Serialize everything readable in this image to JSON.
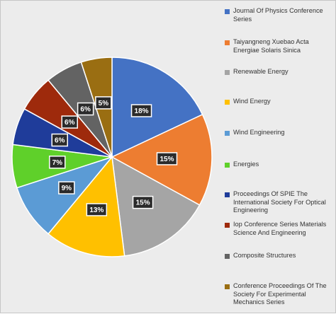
{
  "chart_data": {
    "type": "pie",
    "title": "",
    "legend_position": "right",
    "slices": [
      {
        "name": "Journal Of Physics Conference Series",
        "value": 18,
        "label": "18%",
        "color": "#4472c4"
      },
      {
        "name": "Taiyangneng Xuebao Acta Energiae Solaris Sinica",
        "value": 15,
        "label": "15%",
        "color": "#ed7d31"
      },
      {
        "name": "Renewable Energy",
        "value": 15,
        "label": "15%",
        "color": "#a5a5a5"
      },
      {
        "name": "Wind Energy",
        "value": 13,
        "label": "13%",
        "color": "#ffc000"
      },
      {
        "name": "Wind Engineering",
        "value": 9,
        "label": "9%",
        "color": "#5b9bd5"
      },
      {
        "name": "Energies",
        "value": 7,
        "label": "7%",
        "color": "#5fd02a"
      },
      {
        "name": "Proceedings Of SPIE The International Society For Optical Engineering",
        "value": 6,
        "label": "6%",
        "color": "#1f3c9a"
      },
      {
        "name": "Iop Conference Series Materials Science And Engineering",
        "value": 6,
        "label": "6%",
        "color": "#9e2a0c"
      },
      {
        "name": "Composite Structures",
        "value": 6,
        "label": "6%",
        "color": "#636363"
      },
      {
        "name": "Conference Proceedings Of The Society For Experimental Mechanics Series",
        "value": 5,
        "label": "5%",
        "color": "#9a6e12"
      }
    ]
  }
}
